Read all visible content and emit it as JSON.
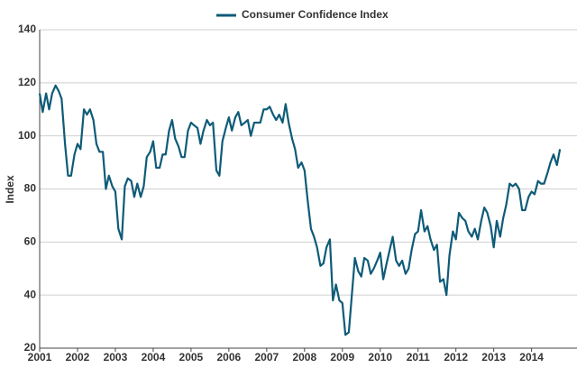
{
  "chart_data": {
    "type": "line",
    "series": [
      {
        "name": "Consumer Confidence Index",
        "color": "#0e5b78",
        "values": [
          116,
          109,
          116,
          110,
          116,
          119,
          117,
          114,
          97,
          85,
          85,
          93,
          97,
          95,
          110,
          108,
          110,
          106,
          97,
          94,
          94,
          80,
          85,
          81,
          79,
          65,
          61,
          81,
          84,
          83,
          77,
          82,
          77,
          81,
          92,
          94,
          98,
          88,
          88,
          93,
          93,
          102,
          106,
          99,
          96,
          92,
          92,
          102,
          105,
          104,
          103,
          97,
          102,
          106,
          104,
          105,
          87,
          85,
          98,
          103,
          107,
          102,
          107,
          109,
          104,
          105,
          106,
          100,
          105,
          105,
          105,
          110,
          110,
          111,
          108,
          106,
          108,
          105,
          112,
          105,
          99,
          95,
          88,
          90,
          87,
          76,
          65,
          62,
          58,
          51,
          52,
          58,
          61,
          38,
          44,
          38,
          37,
          25,
          26,
          40,
          54,
          49,
          47,
          54,
          53,
          48,
          50,
          53,
          56,
          46,
          52,
          57,
          62,
          53,
          51,
          53,
          48,
          50,
          57,
          63,
          64,
          72,
          64,
          66,
          61,
          57,
          59,
          45,
          46,
          40,
          55,
          64,
          61,
          71,
          69,
          68,
          64,
          62,
          65,
          61,
          68,
          73,
          71,
          66,
          58,
          68,
          62,
          69,
          74,
          82,
          81,
          82,
          80,
          72,
          72,
          77,
          79,
          78,
          83,
          82,
          82,
          86,
          90,
          93,
          89,
          95
        ]
      }
    ],
    "x": [
      2001.0,
      2001.08,
      2001.17,
      2001.25,
      2001.33,
      2001.42,
      2001.5,
      2001.58,
      2001.67,
      2001.75,
      2001.83,
      2001.92,
      2002.0,
      2002.08,
      2002.17,
      2002.25,
      2002.33,
      2002.42,
      2002.5,
      2002.58,
      2002.67,
      2002.75,
      2002.83,
      2002.92,
      2003.0,
      2003.08,
      2003.17,
      2003.25,
      2003.33,
      2003.42,
      2003.5,
      2003.58,
      2003.67,
      2003.75,
      2003.83,
      2003.92,
      2004.0,
      2004.08,
      2004.17,
      2004.25,
      2004.33,
      2004.42,
      2004.5,
      2004.58,
      2004.67,
      2004.75,
      2004.83,
      2004.92,
      2005.0,
      2005.08,
      2005.17,
      2005.25,
      2005.33,
      2005.42,
      2005.5,
      2005.58,
      2005.67,
      2005.75,
      2005.83,
      2005.92,
      2006.0,
      2006.08,
      2006.17,
      2006.25,
      2006.33,
      2006.42,
      2006.5,
      2006.58,
      2006.67,
      2006.75,
      2006.83,
      2006.92,
      2007.0,
      2007.08,
      2007.17,
      2007.25,
      2007.33,
      2007.42,
      2007.5,
      2007.58,
      2007.67,
      2007.75,
      2007.83,
      2007.92,
      2008.0,
      2008.08,
      2008.17,
      2008.25,
      2008.33,
      2008.42,
      2008.5,
      2008.58,
      2008.67,
      2008.75,
      2008.83,
      2008.92,
      2009.0,
      2009.08,
      2009.17,
      2009.25,
      2009.33,
      2009.42,
      2009.5,
      2009.58,
      2009.67,
      2009.75,
      2009.83,
      2009.92,
      2010.0,
      2010.08,
      2010.17,
      2010.25,
      2010.33,
      2010.42,
      2010.5,
      2010.58,
      2010.67,
      2010.75,
      2010.83,
      2010.92,
      2011.0,
      2011.08,
      2011.17,
      2011.25,
      2011.33,
      2011.42,
      2011.5,
      2011.58,
      2011.67,
      2011.75,
      2011.83,
      2011.92,
      2012.0,
      2012.08,
      2012.17,
      2012.25,
      2012.33,
      2012.42,
      2012.5,
      2012.58,
      2012.67,
      2012.75,
      2012.83,
      2012.92,
      2013.0,
      2013.08,
      2013.17,
      2013.25,
      2013.33,
      2013.42,
      2013.5,
      2013.58,
      2013.67,
      2013.75,
      2013.83,
      2013.92,
      2014.0,
      2014.08,
      2014.17,
      2014.25,
      2014.33,
      2014.42,
      2014.5,
      2014.58,
      2014.67,
      2014.75
    ],
    "xlim": [
      2001,
      2015.2
    ],
    "xticks": [
      2001,
      2002,
      2003,
      2004,
      2005,
      2006,
      2007,
      2008,
      2009,
      2010,
      2011,
      2012,
      2013,
      2014
    ],
    "ylim": [
      20,
      140
    ],
    "yticks": [
      20,
      40,
      60,
      80,
      100,
      120,
      140
    ],
    "ylabel": "Index",
    "grid": true,
    "legend": "top"
  }
}
